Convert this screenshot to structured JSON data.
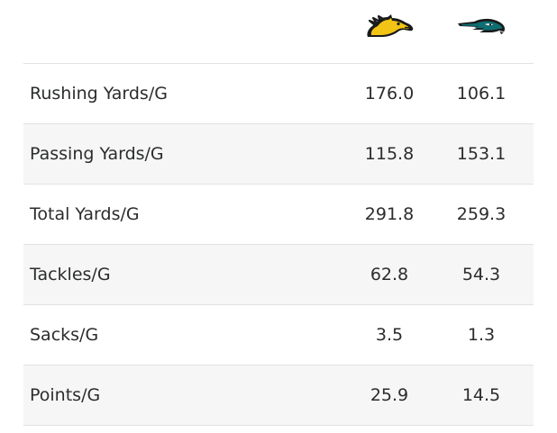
{
  "teams": {
    "home": {
      "icon": "mustang-logo-icon",
      "color": "#f2c415"
    },
    "away": {
      "icon": "hawk-logo-icon",
      "color": "#0f6e73"
    }
  },
  "stats": [
    {
      "label": "Rushing Yards/G",
      "home": "176.0",
      "away": "106.1"
    },
    {
      "label": "Passing Yards/G",
      "home": "115.8",
      "away": "153.1"
    },
    {
      "label": "Total Yards/G",
      "home": "291.8",
      "away": "259.3"
    },
    {
      "label": "Tackles/G",
      "home": "62.8",
      "away": "54.3"
    },
    {
      "label": "Sacks/G",
      "home": "3.5",
      "away": "1.3"
    },
    {
      "label": "Points/G",
      "home": "25.9",
      "away": "14.5"
    }
  ]
}
